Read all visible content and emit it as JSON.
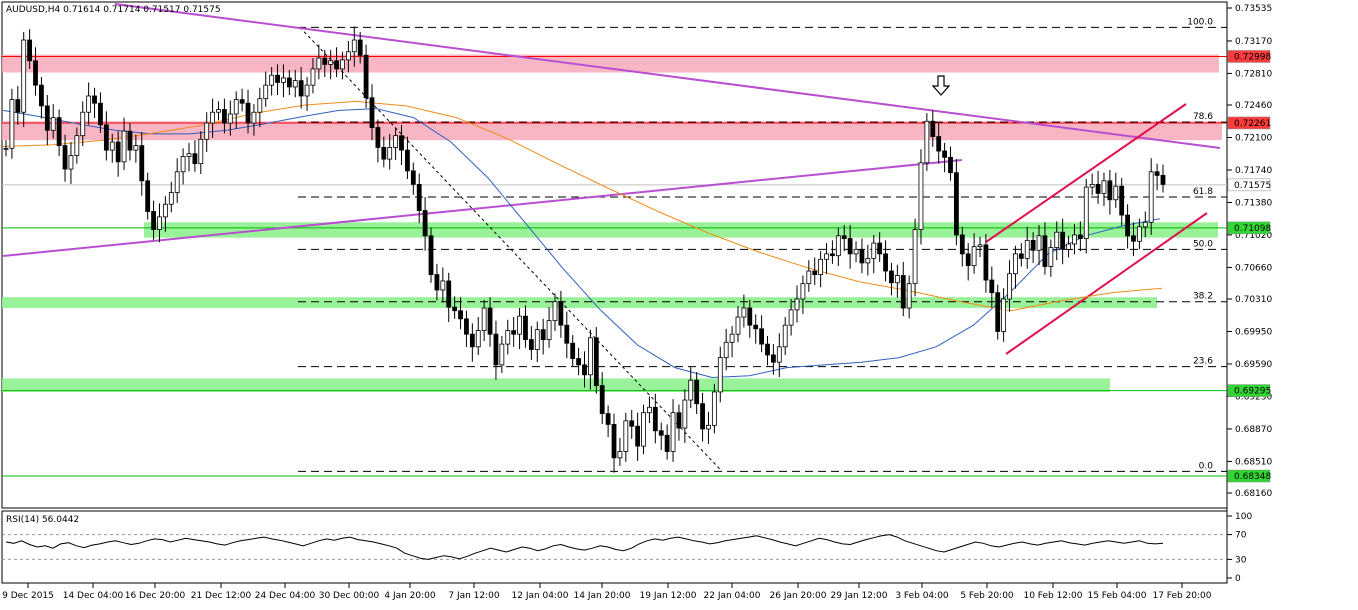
{
  "chart_data": {
    "type": "line",
    "title": "AUDUSD,H4  0.71614 0.71714 0.71517 0.71575",
    "symbol": "AUDUSD",
    "timeframe": "H4",
    "ohlc": {
      "open": 0.71614,
      "high": 0.71714,
      "low": 0.71517,
      "close": 0.71575
    },
    "ylim": [
      0.6816,
      0.73535
    ],
    "y_ticks": [
      "0.73535",
      "0.73170",
      "0.72810",
      "0.72460",
      "0.72100",
      "0.71740",
      "0.71380",
      "0.71020",
      "0.70660",
      "0.70310",
      "0.69950",
      "0.69590",
      "0.69230",
      "0.68870",
      "0.68510",
      "0.68160"
    ],
    "x_ticks": [
      "9 Dec 2015",
      "14 Dec 04:00",
      "16 Dec 20:00",
      "21 Dec 12:00",
      "24 Dec 04:00",
      "30 Dec 00:00",
      "4 Jan 20:00",
      "7 Jan 12:00",
      "12 Jan 04:00",
      "14 Jan 20:00",
      "19 Jan 12:00",
      "22 Jan 04:00",
      "26 Jan 20:00",
      "29 Jan 12:00",
      "3 Feb 04:00",
      "5 Feb 20:00",
      "10 Feb 12:00",
      "15 Feb 04:00",
      "17 Feb 20:00"
    ],
    "grid": false,
    "current_price_label": "0.71575",
    "horizontal_levels": [
      {
        "label": "0.72998",
        "value": 0.72998,
        "color": "#ff0000"
      },
      {
        "label": "0.72261",
        "value": 0.72261,
        "color": "#ff0000"
      },
      {
        "label": "0.71098",
        "value": 0.71098,
        "color": "#00bb00"
      },
      {
        "label": "0.69295",
        "value": 0.69295,
        "color": "#00bb00"
      },
      {
        "label": "0.68348",
        "value": 0.68348,
        "color": "#00bb00"
      }
    ],
    "fibonacci": [
      {
        "label": "100.0",
        "value": 0.7332
      },
      {
        "label": "78.6",
        "value": 0.7227
      },
      {
        "label": "61.8",
        "value": 0.7144
      },
      {
        "label": "50.0",
        "value": 0.7086
      },
      {
        "label": "38.2",
        "value": 0.7028
      },
      {
        "label": "23.6",
        "value": 0.6956
      },
      {
        "label": "0.0",
        "value": 0.684
      }
    ],
    "resistance_zones": [
      [
        0.7282,
        0.7302
      ],
      [
        0.7207,
        0.7228
      ]
    ],
    "support_zones": [
      [
        0.7099,
        0.7116
      ],
      [
        0.7021,
        0.7033
      ],
      [
        0.6928,
        0.6943
      ]
    ],
    "close_series": [
      0.7198,
      0.7252,
      0.7238,
      0.7318,
      0.7295,
      0.7268,
      0.7245,
      0.7218,
      0.7232,
      0.7201,
      0.7175,
      0.719,
      0.7212,
      0.7238,
      0.7256,
      0.7248,
      0.7224,
      0.7196,
      0.7205,
      0.7183,
      0.7217,
      0.7196,
      0.7201,
      0.7162,
      0.7128,
      0.7108,
      0.7122,
      0.7136,
      0.7149,
      0.7172,
      0.7189,
      0.7192,
      0.7181,
      0.7208,
      0.7226,
      0.7238,
      0.7241,
      0.7226,
      0.7236,
      0.7252,
      0.7248,
      0.7226,
      0.7238,
      0.7253,
      0.7268,
      0.7279,
      0.7271,
      0.7276,
      0.7266,
      0.7273,
      0.7256,
      0.7268,
      0.7286,
      0.7298,
      0.7291,
      0.7295,
      0.7286,
      0.7296,
      0.7305,
      0.7318,
      0.7301,
      0.7254,
      0.7221,
      0.7199,
      0.7186,
      0.7199,
      0.7212,
      0.7196,
      0.7173,
      0.7158,
      0.7129,
      0.7101,
      0.7058,
      0.7041,
      0.7051,
      0.7022,
      0.7018,
      0.7009,
      0.6992,
      0.6978,
      0.6996,
      0.7021,
      0.6992,
      0.6958,
      0.6981,
      0.6996,
      0.6992,
      0.7012,
      0.6986,
      0.6975,
      0.6997,
      0.6986,
      0.7007,
      0.7028,
      0.7002,
      0.6982,
      0.6965,
      0.6958,
      0.6947,
      0.6988,
      0.6935,
      0.6904,
      0.6892,
      0.6855,
      0.6862,
      0.6896,
      0.689,
      0.6868,
      0.6905,
      0.6911,
      0.6885,
      0.688,
      0.6862,
      0.6905,
      0.6888,
      0.6919,
      0.6941,
      0.6915,
      0.6887,
      0.6891,
      0.6928,
      0.6966,
      0.6983,
      0.6992,
      0.7011,
      0.7021,
      0.7002,
      0.6998,
      0.6981,
      0.6969,
      0.6961,
      0.6978,
      0.7002,
      0.7019,
      0.7031,
      0.7048,
      0.7062,
      0.7058,
      0.7075,
      0.7081,
      0.7079,
      0.7101,
      0.7098,
      0.7081,
      0.7086,
      0.7071,
      0.7076,
      0.7093,
      0.7081,
      0.7062,
      0.7049,
      0.7057,
      0.7021,
      0.7048,
      0.7108,
      0.7182,
      0.7228,
      0.7211,
      0.7195,
      0.7188,
      0.7171,
      0.7102,
      0.7081,
      0.7068,
      0.7089,
      0.7091,
      0.7052,
      0.7038,
      0.6995,
      0.7031,
      0.7059,
      0.7081,
      0.7076,
      0.7096,
      0.7085,
      0.7101,
      0.7067,
      0.7088,
      0.7105,
      0.7086,
      0.7092,
      0.7102,
      0.7098,
      0.7155,
      0.7158,
      0.7148,
      0.7162,
      0.7141,
      0.7156,
      0.7124,
      0.7101,
      0.7095,
      0.7111,
      0.7116,
      0.7172,
      0.7168,
      0.7158
    ],
    "ma_blue": [
      0.724,
      0.7233,
      0.7225,
      0.7218,
      0.7214,
      0.7214,
      0.7218,
      0.7225,
      0.7233,
      0.724,
      0.7242,
      0.7232,
      0.7205,
      0.7165,
      0.7115,
      0.7065,
      0.7019,
      0.698,
      0.6955,
      0.6944,
      0.6946,
      0.6955,
      0.6958,
      0.6961,
      0.6966,
      0.6978,
      0.7002,
      0.7039,
      0.7081,
      0.7101,
      0.7112,
      0.712
    ],
    "ma_orange": [
      0.72,
      0.7202,
      0.7207,
      0.7215,
      0.7224,
      0.7237,
      0.7246,
      0.725,
      0.7245,
      0.7232,
      0.7209,
      0.7181,
      0.7154,
      0.7128,
      0.7104,
      0.7083,
      0.7065,
      0.705,
      0.704,
      0.7028,
      0.7018,
      0.7029,
      0.7038,
      0.7043
    ],
    "rsi": {
      "label": "RSI(14) 56.0442",
      "period": 14,
      "value": 56.0442,
      "ylim": [
        0,
        100
      ],
      "levels": [
        70,
        30
      ],
      "ticks": [
        "100",
        "70",
        "30",
        "0"
      ],
      "series": [
        58,
        56,
        60,
        54,
        50,
        52,
        48,
        55,
        57,
        52,
        49,
        53,
        55,
        58,
        60,
        57,
        54,
        56,
        60,
        63,
        62,
        58,
        61,
        64,
        62,
        60,
        58,
        55,
        53,
        57,
        60,
        62,
        64,
        66,
        63,
        61,
        58,
        55,
        52,
        56,
        60,
        63,
        61,
        64,
        66,
        62,
        60,
        58,
        55,
        52,
        48,
        40,
        36,
        32,
        30,
        33,
        36,
        34,
        31,
        35,
        40,
        44,
        48,
        45,
        42,
        46,
        50,
        48,
        44,
        47,
        52,
        54,
        50,
        47,
        45,
        48,
        52,
        50,
        46,
        44,
        48,
        55,
        60,
        63,
        61,
        64,
        66,
        63,
        60,
        58,
        55,
        57,
        60,
        62,
        64,
        66,
        68,
        65,
        62,
        58,
        55,
        52,
        56,
        60,
        64,
        62,
        58,
        55,
        54,
        58,
        62,
        65,
        68,
        70,
        66,
        60,
        56,
        52,
        48,
        44,
        42,
        46,
        50,
        54,
        58,
        56,
        52,
        50,
        53,
        56,
        58,
        55,
        53,
        56,
        58,
        60,
        57,
        55,
        53,
        56,
        58,
        60,
        58,
        56,
        58,
        60,
        56,
        55,
        56
      ]
    }
  }
}
